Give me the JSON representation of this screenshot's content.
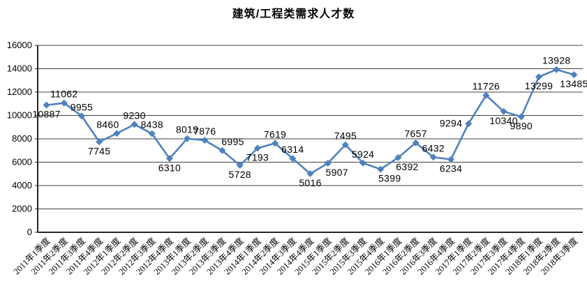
{
  "title": "建筑/工程类需求人才数",
  "chart_data": {
    "type": "line",
    "title": "建筑/工程类需求人才数",
    "xlabel": "",
    "ylabel": "",
    "legend": "none",
    "grid": "horizontal",
    "marker": "diamond",
    "line_color": "#4F81BD",
    "grid_color": "#404040",
    "axis_color": "#262626",
    "text_color": "#000000",
    "ylim": [
      0,
      16000
    ],
    "yticks": [
      0,
      2000,
      4000,
      6000,
      8000,
      10000,
      12000,
      14000,
      16000
    ],
    "categories": [
      "2011年1季度",
      "2011年2季度",
      "2011年3季度",
      "2011年4季度",
      "2012年1季度",
      "2012年2季度",
      "2012年3季度",
      "2012年4季度",
      "2013年1季度",
      "2013年2季度",
      "2013年3季度",
      "2013年4季度",
      "2014年1季度",
      "2014年2季度",
      "2014年3季度",
      "2014年4季度",
      "2015年1季度",
      "2015年2季度",
      "2015年3季度",
      "2015年4季度",
      "2016年1季度",
      "2016年2季度",
      "2016年3季度",
      "2016年4季度",
      "2017年1季度",
      "2017年2季度",
      "2017年3季度",
      "2017年4季度",
      "2018年1季度",
      "2018年2季度",
      "2018年3季度"
    ],
    "values": [
      10887,
      11062,
      9955,
      7745,
      8460,
      9230,
      8438,
      6310,
      8019,
      7876,
      6995,
      5728,
      7193,
      7619,
      6314,
      5016,
      5907,
      7495,
      5924,
      5399,
      6392,
      7657,
      6432,
      6234,
      9294,
      11726,
      10340,
      9890,
      13299,
      13928,
      13485
    ],
    "data_labels": true,
    "label_positions": [
      "below",
      "above",
      "above",
      "below",
      "above-left",
      "above",
      "above",
      "below",
      "above",
      "above",
      "above-right",
      "below",
      "below",
      "above",
      "above",
      "below",
      "below-right",
      "above",
      "above",
      "below-right",
      "below-right",
      "above",
      "above",
      "below",
      "left",
      "above",
      "below",
      "below",
      "below",
      "above",
      "below"
    ]
  }
}
